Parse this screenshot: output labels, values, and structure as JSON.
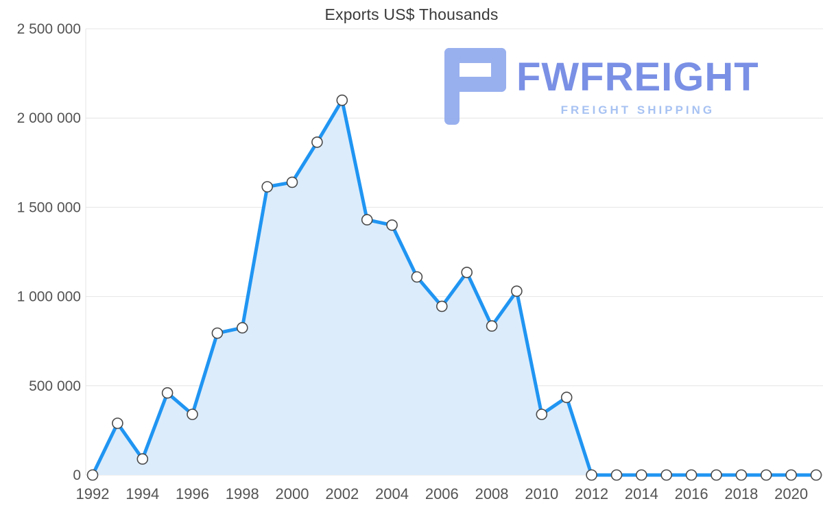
{
  "watermark": {
    "brand": "FWFREIGHT",
    "tagline": "FREIGHT SHIPPING",
    "icon": "fwfreight-logo-icon",
    "colors": {
      "icon": "#8ba6ec",
      "brand": "#6f87e3",
      "tagline": "#a7c2f2"
    }
  },
  "chart_data": {
    "type": "area",
    "title": "Exports US$ Thousands",
    "xlabel": "",
    "ylabel": "",
    "xlim": [
      1992,
      2021
    ],
    "ylim": [
      0,
      2500000
    ],
    "grid": true,
    "legend": "none",
    "x": [
      1992,
      1993,
      1994,
      1995,
      1996,
      1997,
      1998,
      1999,
      2000,
      2001,
      2002,
      2003,
      2004,
      2005,
      2006,
      2007,
      2008,
      2009,
      2010,
      2011,
      2012,
      2013,
      2014,
      2015,
      2016,
      2017,
      2018,
      2019,
      2020,
      2021
    ],
    "values": [
      0,
      290000,
      90000,
      460000,
      340000,
      795000,
      825000,
      1615000,
      1640000,
      1865000,
      2100000,
      1430000,
      1400000,
      1110000,
      945000,
      1135000,
      835000,
      1030000,
      340000,
      435000,
      0,
      0,
      0,
      0,
      0,
      0,
      0,
      0,
      0,
      0
    ],
    "x_ticks": [
      1992,
      1994,
      1996,
      1998,
      2000,
      2002,
      2004,
      2006,
      2008,
      2010,
      2012,
      2014,
      2016,
      2018,
      2020
    ],
    "y_ticks": [
      {
        "value": 0,
        "label": "0"
      },
      {
        "value": 500000,
        "label": "500 000"
      },
      {
        "value": 1000000,
        "label": "1 000 000"
      },
      {
        "value": 1500000,
        "label": "1 500 000"
      },
      {
        "value": 2000000,
        "label": "2 000 000"
      },
      {
        "value": 2500000,
        "label": "2 500 000"
      }
    ],
    "colors": {
      "line": "#2095f2",
      "fill": "#dcecfb",
      "marker_fill": "#ffffff",
      "marker_stroke": "#4a4a4a",
      "grid": "#e4e4e4",
      "axis_text": "#535353",
      "title": "#3a3a3a"
    }
  }
}
